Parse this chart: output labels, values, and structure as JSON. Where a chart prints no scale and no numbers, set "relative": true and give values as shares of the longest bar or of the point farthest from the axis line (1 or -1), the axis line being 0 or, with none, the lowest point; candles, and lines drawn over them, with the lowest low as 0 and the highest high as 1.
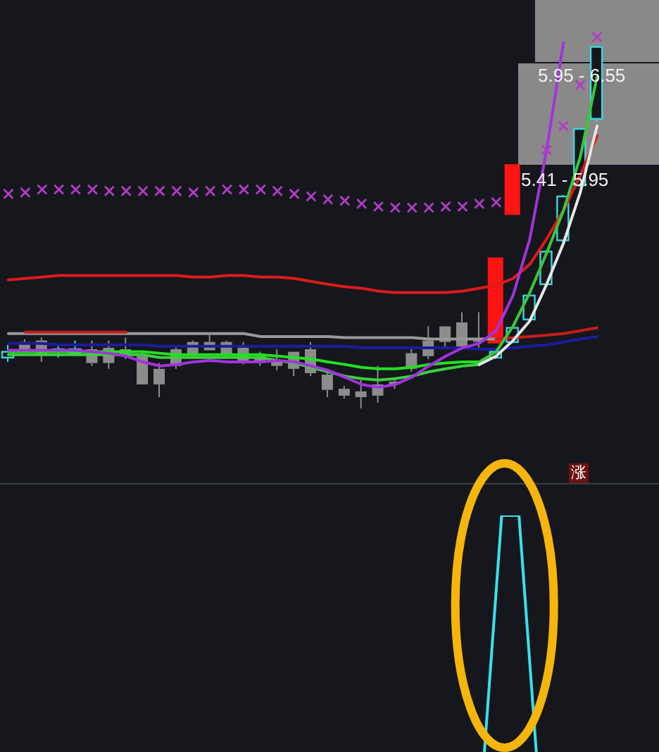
{
  "chart_data": [
    {
      "type": "candlestick",
      "relative": true,
      "categories": [
        null,
        null,
        null,
        null,
        null,
        null,
        null,
        null,
        null,
        null,
        null,
        null,
        null,
        null,
        null,
        null,
        null,
        null,
        null,
        null,
        null,
        null,
        null,
        null,
        null,
        null,
        null,
        null,
        null,
        null,
        null,
        null,
        null,
        null,
        null,
        null
      ],
      "ohlc": [
        [
          0.14,
          0.175,
          0.128,
          0.156
        ],
        [
          0.183,
          0.191,
          0.152,
          0.16
        ],
        [
          0.187,
          0.195,
          0.128,
          0.148
        ],
        [
          0.156,
          0.175,
          0.14,
          0.163
        ],
        [
          0.152,
          0.187,
          0.148,
          0.163
        ],
        [
          0.163,
          0.187,
          0.117,
          0.125
        ],
        [
          0.167,
          0.187,
          0.109,
          0.125
        ],
        [
          0.163,
          0.195,
          0.136,
          0.144
        ],
        [
          0.144,
          0.156,
          0.066,
          0.066
        ],
        [
          0.109,
          0.125,
          0.031,
          0.066
        ],
        [
          0.163,
          0.171,
          0.109,
          0.117
        ],
        [
          0.183,
          0.187,
          0.14,
          0.148
        ],
        [
          0.183,
          0.202,
          0.16,
          0.16
        ],
        [
          0.183,
          0.187,
          0.14,
          0.148
        ],
        [
          0.167,
          0.183,
          0.121,
          0.128
        ],
        [
          0.144,
          0.156,
          0.117,
          0.128
        ],
        [
          0.128,
          0.163,
          0.105,
          0.117
        ],
        [
          0.156,
          0.156,
          0.089,
          0.109
        ],
        [
          0.163,
          0.183,
          0.089,
          0.097
        ],
        [
          0.093,
          0.097,
          0.031,
          0.051
        ],
        [
          0.054,
          0.062,
          0.027,
          0.035
        ],
        [
          0.047,
          0.078,
          0,
          0.031
        ],
        [
          0.066,
          0.117,
          0.016,
          0.035
        ],
        [
          0.074,
          0.086,
          0.054,
          0.066
        ],
        [
          0.152,
          0.163,
          0.101,
          0.109
        ],
        [
          0.187,
          0.226,
          0.136,
          0.144
        ],
        [
          0.226,
          0.226,
          0.167,
          0.183
        ],
        [
          0.237,
          0.265,
          0.167,
          0.167
        ],
        [
          0.187,
          0.265,
          0.167,
          0.183
        ],
        [
          0.14,
          0.16,
          0.136,
          0.156
        ],
        [
          0.183,
          0.226,
          0.179,
          0.222
        ],
        [
          0.245,
          0.315,
          0.241,
          0.311
        ],
        [
          0.342,
          0.436,
          0.339,
          0.432
        ],
        [
          0.463,
          0.588,
          0.459,
          0.584
        ],
        [
          0.615,
          0.774,
          0.611,
          0.77
        ],
        [
          0.798,
          1,
          0.79,
          0.996
        ]
      ],
      "colors": [
        "#3cd6de",
        "#8c8c8c",
        "#8c8c8c",
        "#3cd6de",
        "#3cd6de",
        "#8c8c8c",
        "#8c8c8c",
        "#8c8c8c",
        "#8c8c8c",
        "#8c8c8c",
        "#8c8c8c",
        "#8c8c8c",
        "#8c8c8c",
        "#8c8c8c",
        "#8c8c8c",
        "#8c8c8c",
        "#8c8c8c",
        "#8c8c8c",
        "#8c8c8c",
        "#8c8c8c",
        "#8c8c8c",
        "#8c8c8c",
        "#8c8c8c",
        "#8c8c8c",
        "#8c8c8c",
        "#8c8c8c",
        "#8c8c8c",
        "#8c8c8c",
        "#8c8c8c",
        "#3cd6de",
        "#3cd6de",
        "#3cd6de",
        "#3cd6de",
        "#3cd6de",
        "#3cd6de",
        "#3cd6de"
      ],
      "series": [
        {
          "type": "line",
          "color": "#e01a1a",
          "values": [
            0.354,
            0.358,
            0.362,
            0.366,
            0.366,
            0.366,
            0.366,
            0.366,
            0.366,
            0.366,
            0.366,
            0.362,
            0.362,
            0.366,
            0.366,
            0.362,
            0.362,
            0.358,
            0.35,
            0.342,
            0.335,
            0.331,
            0.323,
            0.319,
            0.319,
            0.319,
            0.319,
            0.323,
            0.331,
            0.339,
            0.358,
            0.397,
            0.467,
            0.545,
            0.642,
            0.751
          ]
        },
        {
          "type": "line",
          "color": "#9a9a9a",
          "values": [
            0.206,
            0.206,
            0.206,
            0.206,
            0.206,
            0.206,
            0.206,
            0.206,
            0.206,
            0.206,
            0.206,
            0.206,
            0.206,
            0.206,
            0.206,
            0.198,
            0.198,
            0.198,
            0.198,
            0.198,
            0.195,
            0.195,
            0.195,
            0.195,
            0.195,
            0.191,
            0.191,
            0.191,
            0.191,
            0.191,
            null,
            null,
            null,
            null,
            null,
            null
          ]
        },
        {
          "type": "line",
          "color": "#c81c1c",
          "values": [
            null,
            0.21,
            0.21,
            0.21,
            0.21,
            0.21,
            0.21,
            0.21,
            null,
            null,
            null,
            null,
            null,
            null,
            null,
            null,
            null,
            null,
            null,
            null,
            null,
            null,
            null,
            null,
            null,
            null,
            null,
            null,
            null,
            0.191,
            0.195,
            0.198,
            0.202,
            0.206,
            0.214,
            0.222
          ]
        },
        {
          "type": "line",
          "color": "#1c1c9a",
          "values": [
            0.179,
            0.179,
            0.179,
            0.175,
            0.175,
            0.175,
            0.175,
            0.175,
            0.175,
            0.171,
            0.171,
            0.171,
            0.171,
            0.171,
            0.171,
            0.171,
            0.171,
            0.171,
            0.171,
            0.171,
            0.171,
            0.167,
            0.167,
            0.167,
            0.167,
            0.167,
            0.167,
            0.167,
            0.163,
            0.163,
            0.167,
            0.171,
            0.175,
            0.183,
            0.191,
            0.198
          ]
        },
        {
          "type": "line",
          "color": "#22e022",
          "values": [
            0.156,
            0.156,
            0.156,
            0.156,
            0.156,
            0.156,
            0.156,
            0.156,
            0.156,
            0.152,
            0.148,
            0.148,
            0.148,
            0.148,
            0.148,
            0.148,
            0.144,
            0.14,
            0.136,
            0.128,
            0.121,
            0.113,
            0.109,
            0.109,
            0.113,
            0.121,
            0.125,
            0.128,
            0.128,
            null,
            null,
            null,
            null,
            null,
            null,
            null
          ]
        },
        {
          "type": "line",
          "color": "#3ccf3c",
          "values": [
            0.148,
            0.148,
            0.148,
            0.148,
            0.148,
            0.148,
            0.148,
            0.148,
            0.148,
            0.14,
            0.14,
            0.14,
            0.14,
            0.14,
            0.14,
            0.14,
            0.132,
            0.125,
            0.113,
            0.101,
            0.089,
            0.082,
            0.078,
            0.082,
            0.089,
            0.101,
            0.109,
            0.117,
            0.121,
            null,
            null,
            null,
            null,
            null,
            null,
            null
          ]
        },
        {
          "type": "line",
          "color": "#38c838",
          "values": [
            null,
            null,
            null,
            null,
            null,
            null,
            null,
            null,
            null,
            null,
            null,
            null,
            null,
            null,
            null,
            null,
            null,
            null,
            null,
            null,
            null,
            null,
            null,
            null,
            null,
            null,
            null,
            null,
            0.128,
            0.156,
            0.226,
            0.319,
            0.428,
            0.545,
            0.693,
            0.914
          ]
        },
        {
          "type": "line",
          "color": "#e6e6e6",
          "values": [
            null,
            null,
            null,
            null,
            null,
            null,
            null,
            null,
            null,
            null,
            null,
            null,
            null,
            null,
            null,
            null,
            null,
            null,
            null,
            null,
            null,
            null,
            null,
            null,
            null,
            null,
            null,
            null,
            0.121,
            0.144,
            0.187,
            0.241,
            0.342,
            0.455,
            0.595,
            0.778
          ]
        },
        {
          "type": "line",
          "color": "#a332de",
          "values": [
            0.16,
            0.16,
            0.16,
            0.16,
            0.16,
            0.156,
            0.152,
            0.144,
            0.128,
            0.117,
            0.121,
            0.128,
            0.132,
            0.128,
            0.128,
            0.128,
            0.132,
            0.128,
            0.117,
            0.105,
            0.086,
            0.066,
            0.058,
            0.066,
            0.086,
            0.117,
            0.144,
            0.167,
            0.179,
            0.214,
            0.311,
            0.467,
            0.712,
            1.008,
            null,
            null
          ]
        },
        {
          "type": "scatter",
          "color": "#b23cc6",
          "marker": "cross",
          "values": [
            0.591,
            0.595,
            0.603,
            0.603,
            0.603,
            0.603,
            0.599,
            0.599,
            0.599,
            0.599,
            0.599,
            0.595,
            0.599,
            0.603,
            0.603,
            0.603,
            0.599,
            0.591,
            0.584,
            0.576,
            0.572,
            0.564,
            0.556,
            0.553,
            0.553,
            0.553,
            0.556,
            0.556,
            0.564,
            0.568,
            null,
            null,
            0.712,
            0.778,
            0.891,
            1.023
          ]
        },
        {
          "type": "bar",
          "color": "#ff1414",
          "values": [
            null,
            null,
            null,
            null,
            null,
            null,
            null,
            null,
            null,
            null,
            null,
            null,
            null,
            null,
            null,
            null,
            null,
            null,
            null,
            null,
            null,
            null,
            null,
            null,
            null,
            null,
            null,
            null,
            null,
            0.237,
            0.14,
            null,
            null,
            null,
            null,
            null
          ],
          "base": [
            null,
            null,
            null,
            null,
            null,
            null,
            null,
            null,
            null,
            null,
            null,
            null,
            null,
            null,
            null,
            null,
            null,
            null,
            null,
            null,
            null,
            null,
            null,
            null,
            null,
            null,
            null,
            null,
            null,
            0.179,
            0.533,
            null,
            null,
            null,
            null,
            null
          ]
        }
      ],
      "annotations": [
        "5.95 - 6.55",
        "5.41 - 5.95",
        "涨"
      ]
    },
    {
      "type": "line",
      "relative": true,
      "categories": [
        null,
        null,
        null,
        null,
        null,
        null,
        null,
        null,
        null,
        null,
        null,
        null,
        null,
        null,
        null,
        null,
        null,
        null,
        null,
        null,
        null,
        null,
        null,
        null,
        null,
        null,
        null,
        null,
        null,
        null,
        null,
        null,
        null,
        null,
        null,
        null
      ],
      "series": [
        {
          "color": "#38e0ea",
          "values": [
            null,
            null,
            null,
            null,
            null,
            null,
            null,
            null,
            null,
            null,
            null,
            null,
            null,
            null,
            null,
            null,
            null,
            null,
            null,
            null,
            null,
            null,
            null,
            null,
            null,
            null,
            null,
            null,
            0,
            1,
            1,
            0,
            null,
            null,
            null,
            null
          ]
        }
      ]
    }
  ]
}
